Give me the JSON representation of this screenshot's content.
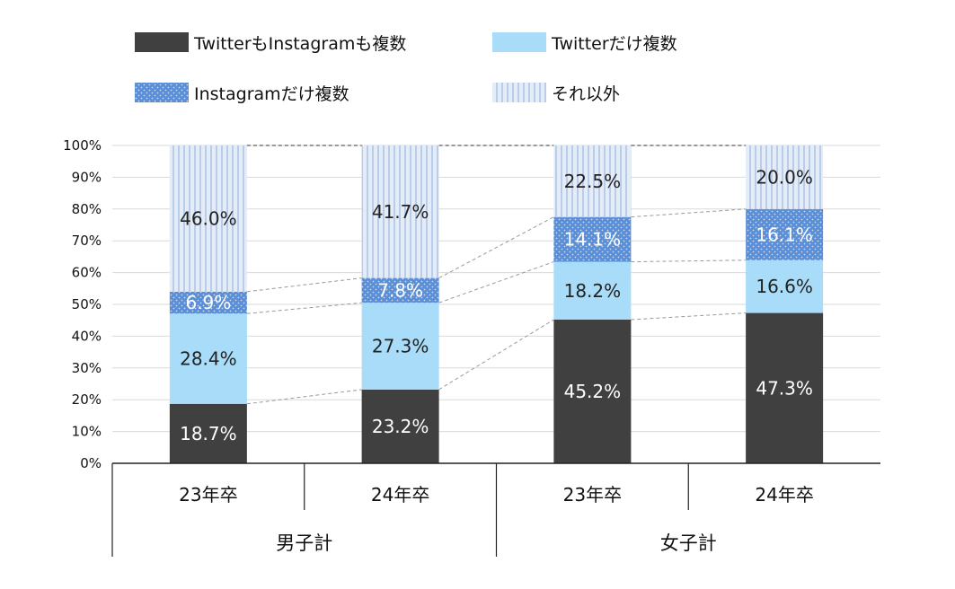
{
  "chart_data": {
    "type": "bar",
    "stacked": true,
    "ylim": [
      0,
      100
    ],
    "y_ticks": [
      "0%",
      "10%",
      "20%",
      "30%",
      "40%",
      "50%",
      "60%",
      "70%",
      "80%",
      "90%",
      "100%"
    ],
    "grid": true,
    "legend_position": "top",
    "categories": [
      "23年卒",
      "24年卒",
      "23年卒",
      "24年卒"
    ],
    "groups": [
      {
        "label": "男子計",
        "categories": [
          0,
          1
        ]
      },
      {
        "label": "女子計",
        "categories": [
          2,
          3
        ]
      }
    ],
    "series": [
      {
        "name": "TwitterもInstagramも複数",
        "values": [
          18.7,
          23.2,
          45.2,
          47.3
        ],
        "labels": [
          "18.7%",
          "23.2%",
          "45.2%",
          "47.3%"
        ],
        "color": "#404040"
      },
      {
        "name": "Twitterだけ複数",
        "values": [
          28.4,
          27.3,
          18.2,
          16.6
        ],
        "labels": [
          "28.4%",
          "27.3%",
          "18.2%",
          "16.6%"
        ],
        "color": "#a8dcf8"
      },
      {
        "name": "Instagramだけ複数",
        "values": [
          6.9,
          7.8,
          14.1,
          16.1
        ],
        "labels": [
          "6.9%",
          "7.8%",
          "14.1%",
          "16.1%"
        ],
        "color": "#5b8ed4"
      },
      {
        "name": "それ以外",
        "values": [
          46.0,
          41.7,
          22.5,
          20.0
        ],
        "labels": [
          "46.0%",
          "41.7%",
          "22.5%",
          "20.0%"
        ],
        "color": "#d8e4f2"
      }
    ]
  }
}
